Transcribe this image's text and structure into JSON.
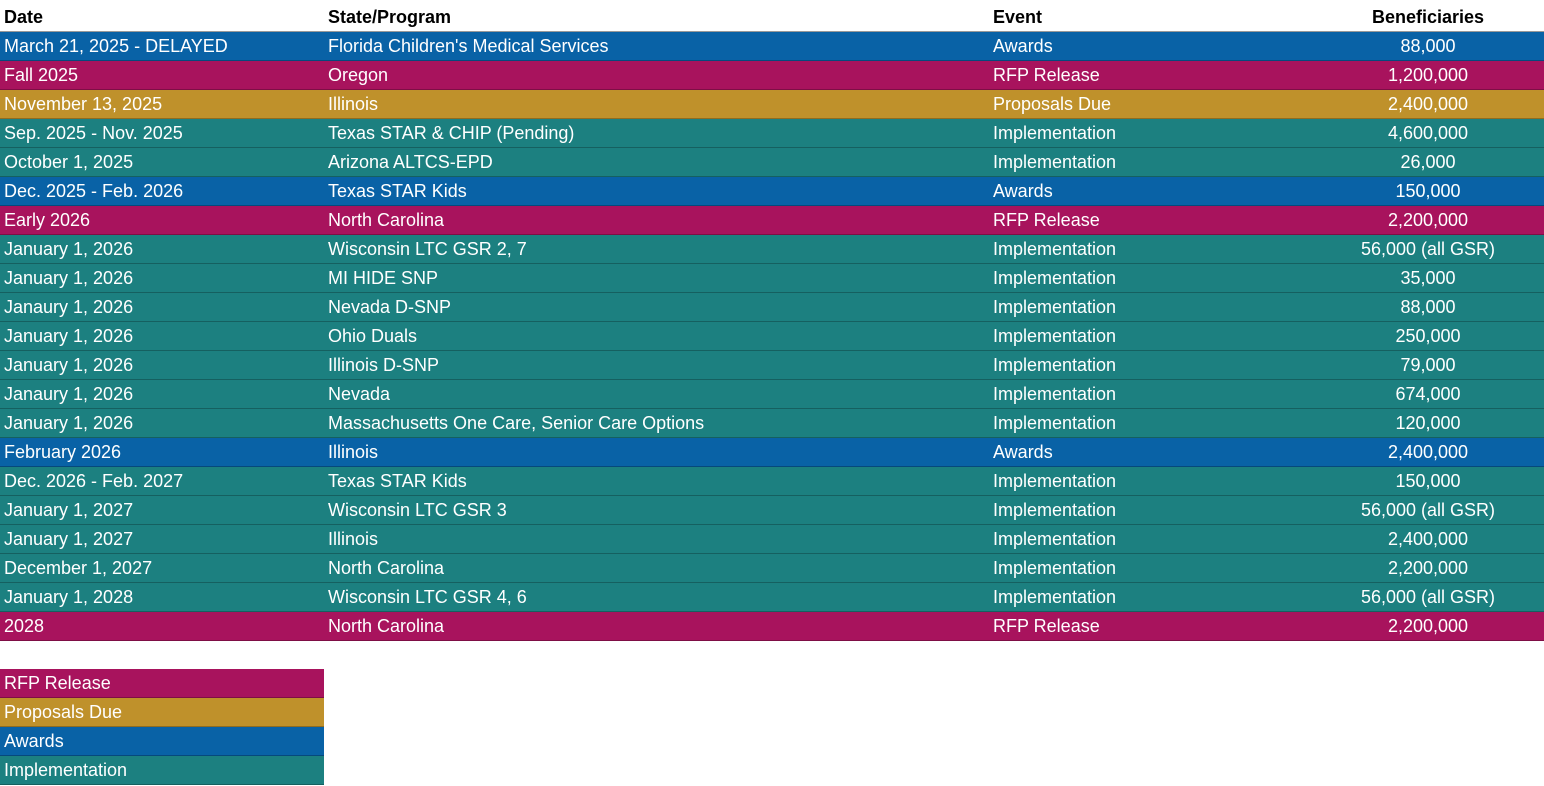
{
  "table": {
    "header": [
      "Date",
      "State/Program",
      "Event",
      "Beneficiaries"
    ],
    "rows": [
      [
        "March 21, 2025 - DELAYED",
        "Florida Children's Medical Services",
        "Awards",
        "88,000"
      ],
      [
        "Fall 2025",
        "Oregon",
        "RFP Release",
        "1,200,000"
      ],
      [
        "November 13, 2025",
        "Illinois",
        "Proposals Due",
        "2,400,000"
      ],
      [
        "Sep. 2025 - Nov. 2025",
        "Texas STAR & CHIP (Pending)",
        "Implementation",
        "4,600,000"
      ],
      [
        "October 1, 2025",
        "Arizona ALTCS-EPD",
        "Implementation",
        "26,000"
      ],
      [
        "Dec. 2025 - Feb. 2026",
        "Texas STAR Kids",
        "Awards",
        "150,000"
      ],
      [
        "Early 2026",
        "North Carolina",
        "RFP Release",
        "2,200,000"
      ],
      [
        "January 1, 2026",
        "Wisconsin LTC GSR 2, 7",
        "Implementation",
        "56,000 (all GSR)"
      ],
      [
        "January 1, 2026",
        "MI HIDE SNP",
        "Implementation",
        "35,000"
      ],
      [
        "Janaury 1, 2026",
        "Nevada D-SNP",
        "Implementation",
        "88,000"
      ],
      [
        "January 1, 2026",
        "Ohio Duals",
        "Implementation",
        "250,000"
      ],
      [
        "January 1, 2026",
        "Illinois D-SNP",
        "Implementation",
        "79,000"
      ],
      [
        "Janaury 1, 2026",
        "Nevada",
        "Implementation",
        "674,000"
      ],
      [
        "January 1, 2026",
        "Massachusetts One Care, Senior Care Options",
        "Implementation",
        "120,000"
      ],
      [
        "February 2026",
        "Illinois",
        "Awards",
        "2,400,000"
      ],
      [
        "Dec. 2026 - Feb. 2027",
        "Texas STAR Kids",
        "Implementation",
        "150,000"
      ],
      [
        "January 1, 2027",
        "Wisconsin LTC GSR 3",
        "Implementation",
        "56,000 (all GSR)"
      ],
      [
        "January 1, 2027",
        "Illinois",
        "Implementation",
        "2,400,000"
      ],
      [
        "December 1, 2027",
        "North Carolina",
        "Implementation",
        "2,200,000"
      ],
      [
        "January 1, 2028",
        "Wisconsin LTC GSR 4, 6",
        "Implementation",
        "56,000 (all GSR)"
      ],
      [
        "2028",
        "North Carolina",
        "RFP Release",
        "2,200,000"
      ]
    ]
  },
  "legend": [
    {
      "label": "RFP Release",
      "color": "#a8135d"
    },
    {
      "label": "Proposals Due",
      "color": "#bf912b"
    },
    {
      "label": "Awards",
      "color": "#0962a6"
    },
    {
      "label": "Implementation",
      "color": "#1c8080"
    }
  ]
}
